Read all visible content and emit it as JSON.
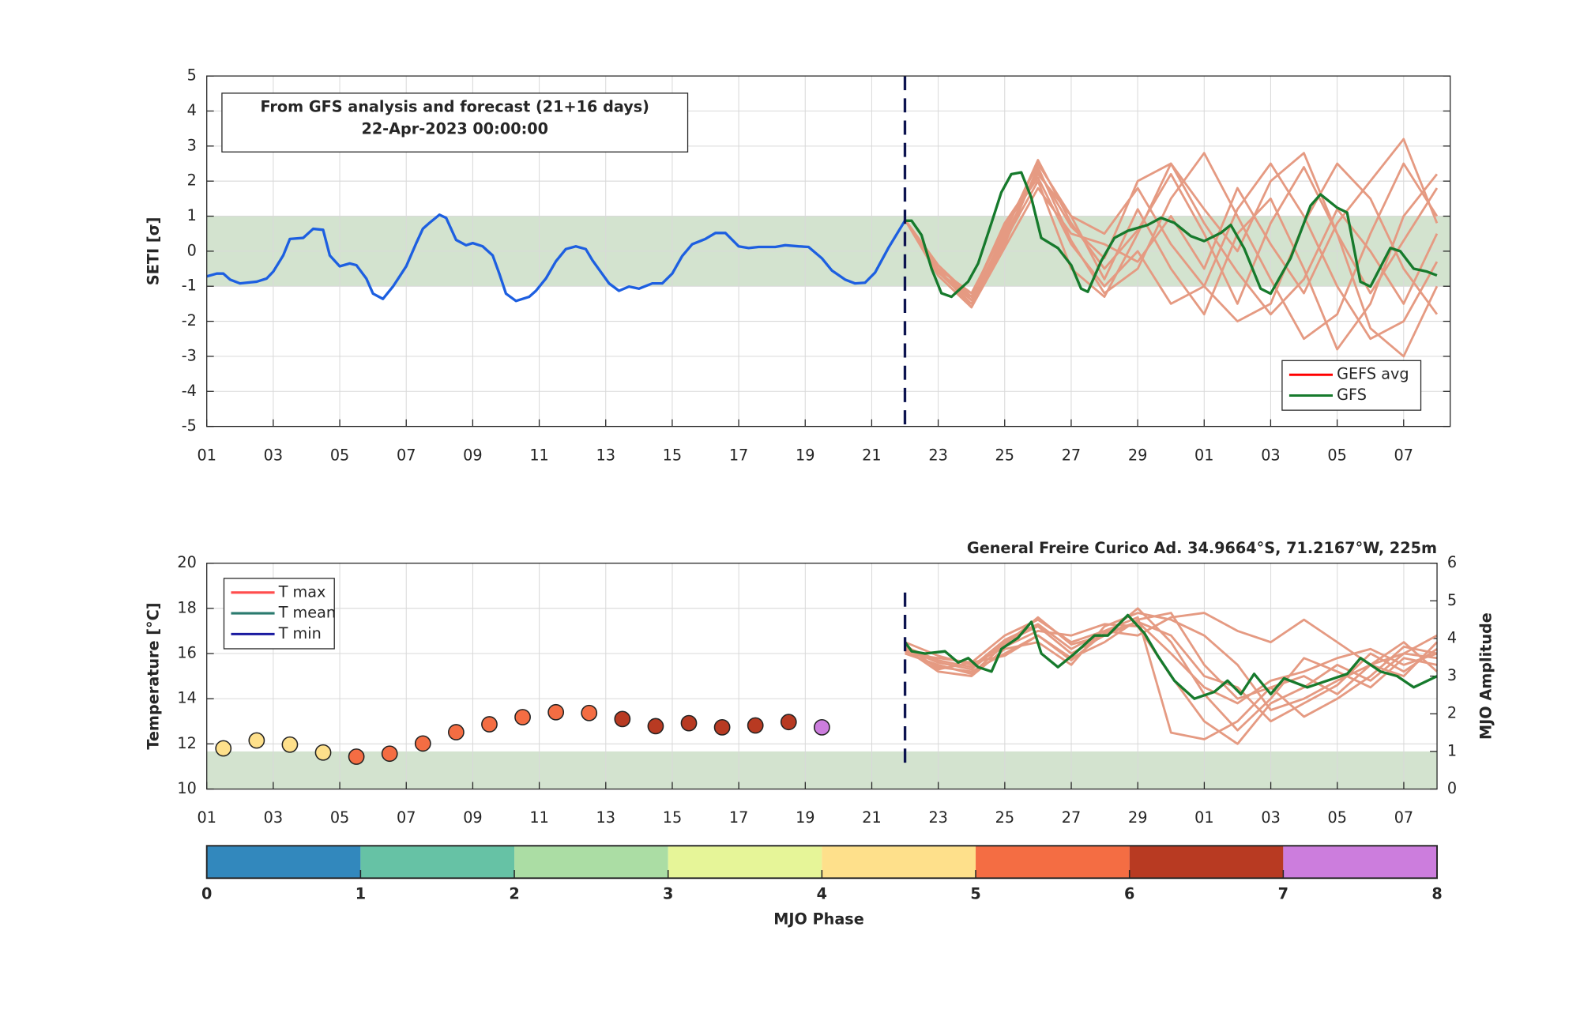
{
  "chart_data": [
    {
      "type": "line",
      "ylabel": "SETI [σ]",
      "annotation": [
        "From GFS analysis and forecast (21+16 days)",
        "22-Apr-2023 00:00:00"
      ],
      "xlim": [
        0,
        37.4
      ],
      "ylim": [
        -5,
        5
      ],
      "yticks": [
        -5,
        -4,
        -3,
        -2,
        -1,
        0,
        1,
        2,
        3,
        4,
        5
      ],
      "xticks": [
        {
          "value": 0,
          "label": "01"
        },
        {
          "value": 2,
          "label": "03"
        },
        {
          "value": 4,
          "label": "05"
        },
        {
          "value": 6,
          "label": "07"
        },
        {
          "value": 8,
          "label": "09"
        },
        {
          "value": 10,
          "label": "11"
        },
        {
          "value": 12,
          "label": "13"
        },
        {
          "value": 14,
          "label": "15"
        },
        {
          "value": 16,
          "label": "17"
        },
        {
          "value": 18,
          "label": "19"
        },
        {
          "value": 20,
          "label": "21"
        },
        {
          "value": 22,
          "label": "23"
        },
        {
          "value": 24,
          "label": "25"
        },
        {
          "value": 26,
          "label": "27"
        },
        {
          "value": 28,
          "label": "29"
        },
        {
          "value": 30,
          "label": "01"
        },
        {
          "value": 32,
          "label": "03"
        },
        {
          "value": 34,
          "label": "05"
        },
        {
          "value": 36,
          "label": "07"
        }
      ],
      "grid": true,
      "band": [
        -1,
        1
      ],
      "band_color": "#d3e3cf",
      "forecast_start": 21,
      "ensemble_color": "#e59a82",
      "ensemble_x": [
        21,
        22,
        23,
        24,
        25,
        26,
        27,
        28,
        29,
        30,
        31,
        32,
        33,
        34,
        35,
        36,
        37
      ],
      "ensemble": [
        [
          0.9,
          -0.6,
          -1.4,
          0.5,
          2.6,
          0.8,
          -0.5,
          0.6,
          2.2,
          0.5,
          -1.5,
          0.8,
          2.4,
          0.5,
          -1.2,
          0.3,
          1.8
        ],
        [
          0.9,
          -0.5,
          -1.6,
          0.2,
          2.4,
          0.3,
          -1.2,
          -0.5,
          1.5,
          2.8,
          1.0,
          -0.8,
          -2.5,
          -1.8,
          0.5,
          2.5,
          1.0
        ],
        [
          0.9,
          -0.4,
          -1.3,
          0.8,
          2.2,
          1.0,
          0.5,
          1.8,
          0.2,
          -1.0,
          -2.0,
          -1.5,
          0.8,
          2.5,
          1.5,
          -0.5,
          -1.8
        ],
        [
          0.9,
          -0.6,
          -1.5,
          0.3,
          2.0,
          -0.5,
          -1.3,
          0.5,
          2.5,
          1.2,
          0.0,
          2.0,
          2.8,
          0.5,
          -2.2,
          -3.0,
          -1.0
        ],
        [
          0.9,
          -0.5,
          -1.2,
          0.6,
          2.5,
          1.0,
          -0.8,
          1.2,
          -0.5,
          -1.8,
          0.5,
          1.5,
          -0.5,
          -2.8,
          -1.5,
          1.0,
          2.2
        ],
        [
          0.9,
          -0.7,
          -1.6,
          0.1,
          1.8,
          0.5,
          0.2,
          -0.3,
          1.0,
          -0.5,
          1.8,
          0.2,
          -1.2,
          0.8,
          2.0,
          3.2,
          0.8
        ],
        [
          0.9,
          -0.4,
          -1.4,
          0.4,
          2.3,
          0.7,
          -0.2,
          2.0,
          2.5,
          0.8,
          -0.6,
          -1.8,
          -0.8,
          1.2,
          0.0,
          -1.5,
          0.5
        ],
        [
          0.9,
          -0.6,
          -1.3,
          0.7,
          2.1,
          0.2,
          -1.0,
          0.0,
          -1.5,
          -1.0,
          1.2,
          2.5,
          1.0,
          -1.0,
          -2.5,
          -2.0,
          -0.3
        ]
      ],
      "series": [
        {
          "color": "#1d5fe0",
          "x": [
            0,
            0.3,
            0.5,
            0.7,
            1.0,
            1.5,
            1.8,
            2.0,
            2.3,
            2.5,
            2.9,
            3.2,
            3.5,
            3.7,
            4.0,
            4.3,
            4.5,
            4.8,
            5.0,
            5.3,
            5.6,
            6.0,
            6.3,
            6.5,
            6.7,
            7.0,
            7.2,
            7.5,
            7.8,
            8.0,
            8.3,
            8.6,
            8.8,
            9.0,
            9.3,
            9.7,
            9.9,
            10.2,
            10.5,
            10.8,
            11.1,
            11.4,
            11.6,
            12.1,
            12.4,
            12.7,
            13.0,
            13.4,
            13.7,
            14.0,
            14.3,
            14.6,
            15.0,
            15.3,
            15.6,
            16.0,
            16.3,
            16.6,
            17.1,
            17.4,
            17.8,
            18.1,
            18.5,
            18.8,
            19.2,
            19.5,
            19.8,
            20.1,
            20.5,
            21.0
          ],
          "values": [
            -0.72,
            -0.64,
            -0.64,
            -0.81,
            -0.92,
            -0.87,
            -0.78,
            -0.58,
            -0.12,
            0.35,
            0.38,
            0.64,
            0.61,
            -0.12,
            -0.43,
            -0.35,
            -0.4,
            -0.78,
            -1.21,
            -1.36,
            -1.01,
            -0.43,
            0.23,
            0.64,
            0.81,
            1.04,
            0.95,
            0.32,
            0.17,
            0.23,
            0.14,
            -0.12,
            -0.64,
            -1.21,
            -1.42,
            -1.3,
            -1.13,
            -0.78,
            -0.29,
            0.06,
            0.14,
            0.06,
            -0.26,
            -0.92,
            -1.13,
            -1.01,
            -1.07,
            -0.92,
            -0.92,
            -0.64,
            -0.14,
            0.2,
            0.35,
            0.52,
            0.52,
            0.14,
            0.09,
            0.12,
            0.12,
            0.17,
            0.14,
            0.12,
            -0.2,
            -0.55,
            -0.81,
            -0.92,
            -0.9,
            -0.61,
            0.09,
            0.87
          ]
        },
        {
          "color": "#167a2c",
          "x": [
            21.0,
            21.2,
            21.5,
            21.8,
            22.1,
            22.4,
            22.9,
            23.2,
            23.6,
            23.9,
            24.2,
            24.5,
            24.8,
            25.1,
            25.6,
            26.0,
            26.3,
            26.5,
            26.9,
            27.3,
            27.7,
            28.3,
            28.7,
            29.1,
            29.6,
            30.0,
            30.5,
            30.8,
            31.2,
            31.7,
            32.0,
            32.6,
            33.2,
            33.5,
            34.0,
            34.3,
            34.7,
            35.0,
            35.6,
            35.9,
            36.3,
            36.7,
            37.0
          ],
          "values": [
            0.87,
            0.87,
            0.46,
            -0.5,
            -1.2,
            -1.3,
            -0.87,
            -0.35,
            0.8,
            1.68,
            2.2,
            2.25,
            1.53,
            0.38,
            0.09,
            -0.4,
            -1.07,
            -1.16,
            -0.29,
            0.38,
            0.58,
            0.75,
            0.95,
            0.81,
            0.43,
            0.29,
            0.52,
            0.75,
            0.09,
            -1.07,
            -1.21,
            -0.2,
            1.3,
            1.62,
            1.24,
            1.1,
            -0.87,
            -1.01,
            0.09,
            0,
            -0.5,
            -0.58,
            -0.69
          ]
        }
      ],
      "legend": [
        {
          "name": "GEFS avg",
          "color": "#ff0000"
        },
        {
          "name": "GFS",
          "color": "#167a2c"
        }
      ],
      "legend_position": "lower right"
    },
    {
      "type": "line",
      "title": "General Freire Curico Ad. 34.9664°S, 71.2167°W, 225m",
      "ylabel": "Temperature [°C]",
      "y2label": "MJO Amplitude",
      "xlim": [
        0,
        37
      ],
      "ylim": [
        10,
        20
      ],
      "y2lim": [
        0,
        6
      ],
      "yticks": [
        10,
        12,
        14,
        16,
        18,
        20
      ],
      "y2ticks": [
        0,
        1,
        2,
        3,
        4,
        5,
        6
      ],
      "xticks": [
        {
          "value": 0,
          "label": "01"
        },
        {
          "value": 2,
          "label": "03"
        },
        {
          "value": 4,
          "label": "05"
        },
        {
          "value": 6,
          "label": "07"
        },
        {
          "value": 8,
          "label": "09"
        },
        {
          "value": 10,
          "label": "11"
        },
        {
          "value": 12,
          "label": "13"
        },
        {
          "value": 14,
          "label": "15"
        },
        {
          "value": 16,
          "label": "17"
        },
        {
          "value": 18,
          "label": "19"
        },
        {
          "value": 20,
          "label": "21"
        },
        {
          "value": 22,
          "label": "23"
        },
        {
          "value": 24,
          "label": "25"
        },
        {
          "value": 26,
          "label": "27"
        },
        {
          "value": 28,
          "label": "29"
        },
        {
          "value": 30,
          "label": "01"
        },
        {
          "value": 32,
          "label": "03"
        },
        {
          "value": 34,
          "label": "05"
        },
        {
          "value": 36,
          "label": "07"
        }
      ],
      "grid": true,
      "band_y2": [
        0,
        1
      ],
      "band_color": "#d3e3cf",
      "forecast_start": 21,
      "ensemble_color": "#e59a82",
      "ensemble_x": [
        21,
        22,
        23,
        24,
        25,
        26,
        27,
        28,
        29,
        30,
        31,
        32,
        33,
        34,
        35,
        36,
        37
      ],
      "ensemble": [
        [
          16.2,
          15.6,
          15.3,
          16.5,
          17.2,
          16.0,
          16.8,
          17.4,
          16.0,
          14.5,
          13.8,
          14.8,
          15.2,
          15.8,
          16.2,
          15.5,
          16.0
        ],
        [
          16.0,
          15.8,
          15.6,
          16.8,
          17.5,
          16.5,
          17.0,
          17.6,
          12.5,
          12.2,
          13.0,
          14.5,
          15.0,
          14.2,
          15.5,
          16.5,
          15.2
        ],
        [
          16.2,
          15.2,
          15.0,
          16.2,
          16.5,
          15.5,
          17.2,
          17.8,
          17.5,
          16.8,
          15.5,
          13.5,
          14.0,
          14.8,
          15.5,
          15.0,
          16.5
        ],
        [
          16.5,
          15.9,
          15.5,
          16.3,
          17.0,
          16.8,
          17.3,
          17.2,
          15.0,
          13.0,
          12.0,
          13.8,
          14.5,
          15.5,
          14.8,
          16.0,
          15.8
        ],
        [
          16.1,
          15.4,
          15.2,
          16.0,
          16.8,
          15.8,
          16.5,
          17.5,
          17.8,
          15.5,
          14.0,
          14.5,
          13.2,
          14.0,
          15.0,
          16.3,
          16.0
        ],
        [
          16.3,
          15.7,
          15.4,
          16.6,
          17.3,
          16.2,
          17.0,
          16.8,
          17.6,
          17.8,
          17.0,
          16.5,
          17.5,
          16.5,
          15.5,
          16.0,
          16.8
        ],
        [
          16.0,
          15.5,
          15.1,
          16.4,
          17.6,
          16.4,
          16.8,
          18.0,
          16.5,
          14.2,
          12.6,
          14.0,
          15.8,
          15.2,
          14.5,
          15.8,
          15.5
        ],
        [
          16.4,
          15.3,
          15.6,
          15.9,
          16.8,
          15.7,
          16.9,
          17.4,
          16.8,
          15.0,
          14.5,
          13.0,
          13.8,
          14.6,
          16.0,
          15.2,
          16.2
        ]
      ],
      "series": [
        {
          "color": "#167a2c",
          "x": [
            21.0,
            21.2,
            21.6,
            22.2,
            22.6,
            22.9,
            23.2,
            23.6,
            23.9,
            24.4,
            24.8,
            25.1,
            25.6,
            26.1,
            26.7,
            27.1,
            27.7,
            28.2,
            28.6,
            29.1,
            29.7,
            30.3,
            30.7,
            31.1,
            31.5,
            32.0,
            32.4,
            33.1,
            33.7,
            34.3,
            34.7,
            35.3,
            35.8,
            36.3,
            37.0
          ],
          "values": [
            16.5,
            16.1,
            16.0,
            16.1,
            15.6,
            15.8,
            15.4,
            15.2,
            16.2,
            16.7,
            17.4,
            16.0,
            15.4,
            16.0,
            16.8,
            16.8,
            17.7,
            16.9,
            15.9,
            14.8,
            14.0,
            14.3,
            14.8,
            14.2,
            15.1,
            14.2,
            14.9,
            14.5,
            14.8,
            15.1,
            15.8,
            15.2,
            15.0,
            14.5,
            15.0
          ]
        }
      ],
      "mjo": {
        "axis": "y2",
        "x": [
          0.5,
          1.5,
          2.5,
          3.5,
          4.5,
          5.5,
          6.5,
          7.5,
          8.5,
          9.5,
          10.5,
          11.5,
          12.5,
          13.5,
          14.5,
          15.5,
          16.5,
          17.5,
          18.5
        ],
        "values": [
          1.08,
          1.29,
          1.18,
          0.97,
          0.86,
          0.94,
          1.21,
          1.51,
          1.72,
          1.91,
          2.04,
          2.02,
          1.86,
          1.67,
          1.75,
          1.64,
          1.69,
          1.78,
          1.64
        ],
        "phases": [
          4,
          4,
          4,
          4,
          5,
          5,
          5,
          5,
          5,
          5,
          5,
          5,
          6,
          6,
          6,
          6,
          6,
          6,
          7
        ]
      },
      "legend": [
        {
          "name": "T max",
          "color": "#ff4d4d"
        },
        {
          "name": "T mean",
          "color": "#2a7a6e"
        },
        {
          "name": "T min",
          "color": "#1a1aa0"
        }
      ],
      "legend_position": "upper left"
    },
    {
      "type": "colorbar",
      "label": "MJO Phase",
      "ticks": [
        0,
        1,
        2,
        3,
        4,
        5,
        6,
        7,
        8
      ],
      "colors": [
        "#3288bd",
        "#66c2a5",
        "#abdda4",
        "#e6f598",
        "#fee08b",
        "#f46d43",
        "#b83a22",
        "#cc7ddd"
      ]
    }
  ]
}
